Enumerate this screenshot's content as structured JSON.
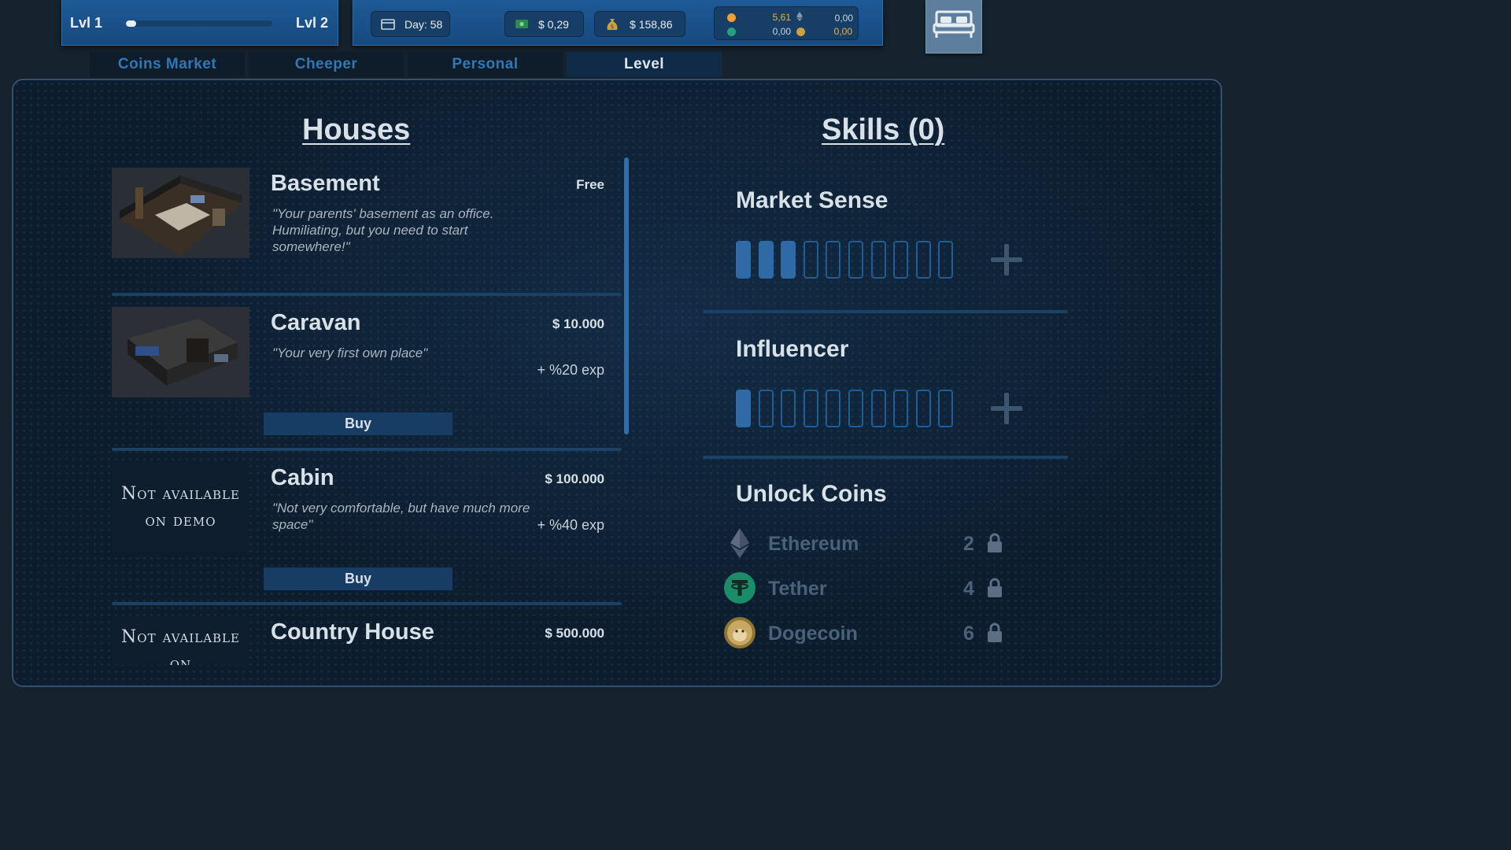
{
  "hud": {
    "level_current": "Lvl 1",
    "level_next": "Lvl 2",
    "xp_progress": 0.07,
    "day": "Day: 58",
    "cash_small": "$ 0,29",
    "cash_total": "$ 158,86",
    "coins": [
      {
        "icon": "bitcoin-icon",
        "value": "5,61",
        "color": "#f0a030"
      },
      {
        "icon": "ethereum-icon",
        "value": "0,00",
        "color": "#8c9aa8"
      },
      {
        "icon": "tether-icon",
        "value": "0,00",
        "color": "#26a17b"
      },
      {
        "icon": "dogecoin-icon",
        "value": "0,00",
        "color": "#c9a23c"
      }
    ]
  },
  "tabs": [
    {
      "label": "Coins Market",
      "active": false
    },
    {
      "label": "Cheeper",
      "active": false
    },
    {
      "label": "Personal",
      "active": false
    },
    {
      "label": "Level",
      "active": true
    }
  ],
  "houses_title": "Houses",
  "houses": [
    {
      "name": "Basement",
      "price": "Free",
      "desc": "\"Your parents' basement as an office. Humiliating, but you need to start somewhere!\"",
      "exp": "",
      "buy": "",
      "available": true
    },
    {
      "name": "Caravan",
      "price": "$ 10.000",
      "desc": "\"Your very first own place\"",
      "exp": "+ %20 exp",
      "buy": "Buy",
      "available": true
    },
    {
      "name": "Cabin",
      "price": "$ 100.000",
      "desc": "\"Not very comfortable, but have much more space\"",
      "exp": "+ %40 exp",
      "buy": "Buy",
      "available": false,
      "na_text": "Not available on demo"
    },
    {
      "name": "Country House",
      "price": "$ 500.000",
      "desc": "",
      "exp": "",
      "buy": "",
      "available": false,
      "na_text": "Not available on"
    }
  ],
  "skills_title": "Skills (0)",
  "skills": [
    {
      "name": "Market Sense",
      "level": 3,
      "max": 10
    },
    {
      "name": "Influencer",
      "level": 1,
      "max": 10
    }
  ],
  "unlock": {
    "title": "Unlock Coins",
    "coins": [
      {
        "name": "Ethereum",
        "level": "2",
        "icon": "ethereum-icon"
      },
      {
        "name": "Tether",
        "level": "4",
        "icon": "tether-icon"
      },
      {
        "name": "Dogecoin",
        "level": "6",
        "icon": "dogecoin-icon"
      }
    ]
  }
}
